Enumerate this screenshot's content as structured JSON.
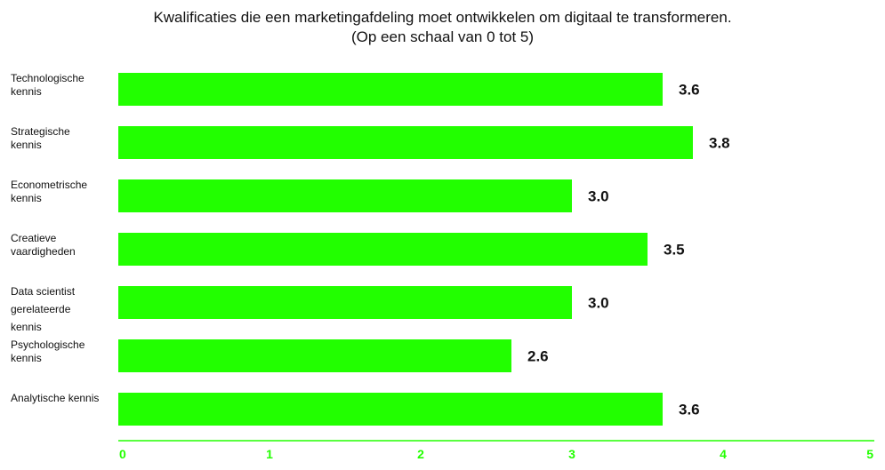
{
  "chart_data": {
    "type": "bar",
    "orientation": "horizontal",
    "title": "Kwalificaties die een marketingafdeling moet ontwikkelen om digitaal te transformeren.",
    "subtitle": "(Op een schaal van 0 tot 5)",
    "categories": [
      [
        "Technologische",
        "kennis"
      ],
      [
        "Strategische",
        "kennis"
      ],
      [
        "Econometrische",
        "kennis"
      ],
      [
        "Creatieve",
        "vaardigheden"
      ],
      [
        "Data scientist",
        "gerelateerde",
        "kennis"
      ],
      [
        "Psychologische",
        "kennis"
      ],
      [
        "Analytische kennis"
      ]
    ],
    "values": [
      3.6,
      3.8,
      3.0,
      3.5,
      3.0,
      2.6,
      3.6
    ],
    "value_labels": [
      "3.6",
      "3.8",
      "3.0",
      "3.5",
      "3.0",
      "2.6",
      "3.6"
    ],
    "xlim": [
      0,
      5
    ],
    "xticks": [
      "0",
      "1",
      "2",
      "3",
      "4",
      "5"
    ],
    "grid": false,
    "bar_color": "#22ff00",
    "axis_color": "#22ff00"
  }
}
